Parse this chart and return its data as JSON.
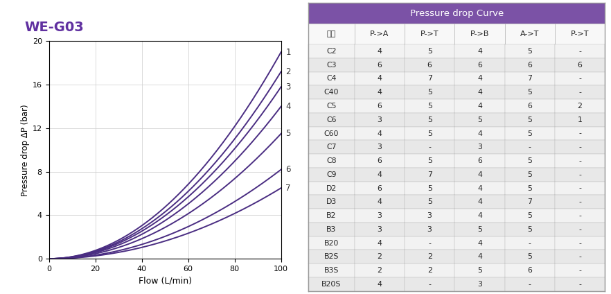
{
  "title": "WE-G03",
  "title_color": "#6030a0",
  "xlabel": "Flow (L/min)",
  "ylabel": "Pressure drop ΔP (bar)",
  "xlim": [
    0,
    100
  ],
  "ylim": [
    0,
    20
  ],
  "xticks": [
    0,
    20,
    40,
    60,
    80,
    100
  ],
  "yticks": [
    0,
    4,
    8,
    12,
    16,
    20
  ],
  "curve_color": "#4a2d82",
  "curve_end_values": [
    19.0,
    17.2,
    15.8,
    14.0,
    11.5,
    8.2,
    6.5
  ],
  "curve_labels": [
    "1",
    "2",
    "3",
    "4",
    "5",
    "6",
    "7"
  ],
  "table_title": "Pressure drop Curve",
  "table_title_bg": "#7b52a6",
  "table_title_color": "#ffffff",
  "table_header": [
    "型式",
    "P->A",
    "P->T",
    "P->B",
    "A->T",
    "P->T"
  ],
  "table_rows": [
    [
      "C2",
      "4",
      "5",
      "4",
      "5",
      "-"
    ],
    [
      "C3",
      "6",
      "6",
      "6",
      "6",
      "6"
    ],
    [
      "C4",
      "4",
      "7",
      "4",
      "7",
      "-"
    ],
    [
      "C40",
      "4",
      "5",
      "4",
      "5",
      "-"
    ],
    [
      "C5",
      "6",
      "5",
      "4",
      "6",
      "2"
    ],
    [
      "C6",
      "3",
      "5",
      "5",
      "5",
      "1"
    ],
    [
      "C60",
      "4",
      "5",
      "4",
      "5",
      "-"
    ],
    [
      "C7",
      "3",
      "-",
      "3",
      "-",
      "-"
    ],
    [
      "C8",
      "6",
      "5",
      "6",
      "5",
      "-"
    ],
    [
      "C9",
      "4",
      "7",
      "4",
      "5",
      "-"
    ],
    [
      "D2",
      "6",
      "5",
      "4",
      "5",
      "-"
    ],
    [
      "D3",
      "4",
      "5",
      "4",
      "7",
      "-"
    ],
    [
      "B2",
      "3",
      "3",
      "4",
      "5",
      "-"
    ],
    [
      "B3",
      "3",
      "3",
      "5",
      "5",
      "-"
    ],
    [
      "B20",
      "4",
      "-",
      "4",
      "-",
      "-"
    ],
    [
      "B2S",
      "2",
      "2",
      "4",
      "5",
      "-"
    ],
    [
      "B3S",
      "2",
      "2",
      "5",
      "6",
      "-"
    ],
    [
      "B20S",
      "4",
      "-",
      "3",
      "-",
      "-"
    ]
  ],
  "row_bg_light": "#f2f2f2",
  "row_bg_dark": "#e8e8e8",
  "table_border_color": "#bbbbbb",
  "header_bg": "#f8f8f8",
  "bg_color": "#ffffff"
}
